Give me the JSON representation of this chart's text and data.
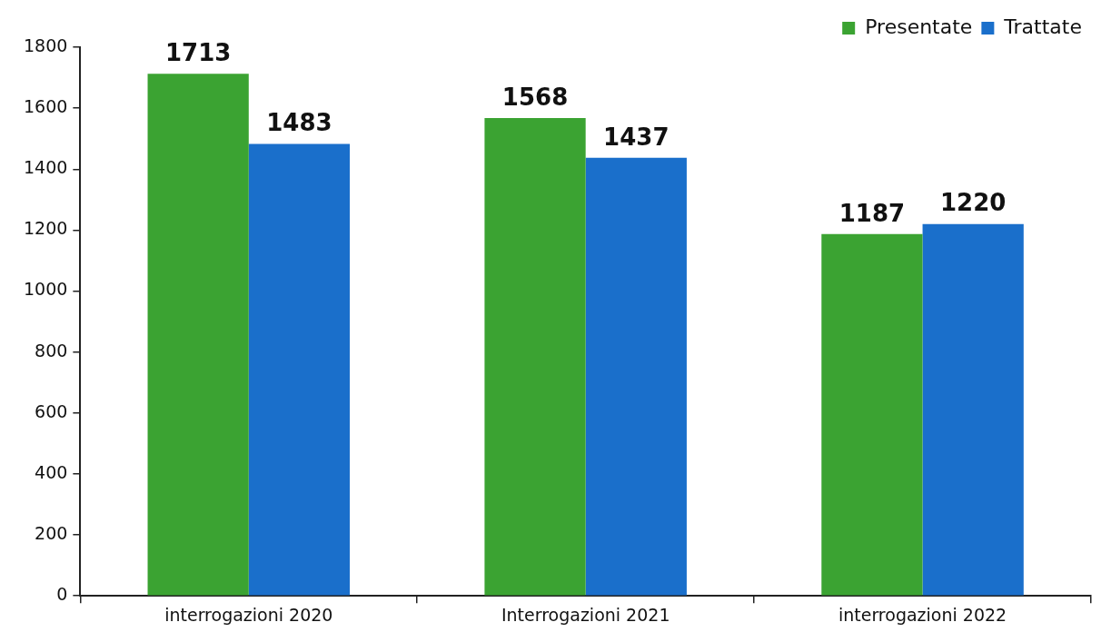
{
  "chart_data": {
    "type": "bar",
    "categories": [
      "interrogazioni 2020",
      "Interrogazioni 2021",
      "interrogazioni 2022"
    ],
    "series": [
      {
        "name": "Presentate",
        "color": "#3ba332",
        "values": [
          1713,
          1568,
          1187
        ]
      },
      {
        "name": "Trattate",
        "color": "#1a6fcb",
        "values": [
          1483,
          1437,
          1220
        ]
      }
    ],
    "ylim": [
      0,
      1800
    ],
    "yticks": [
      0,
      200,
      400,
      600,
      800,
      1000,
      1200,
      1400,
      1600,
      1800
    ],
    "data_labels": true,
    "legend": "top right"
  }
}
